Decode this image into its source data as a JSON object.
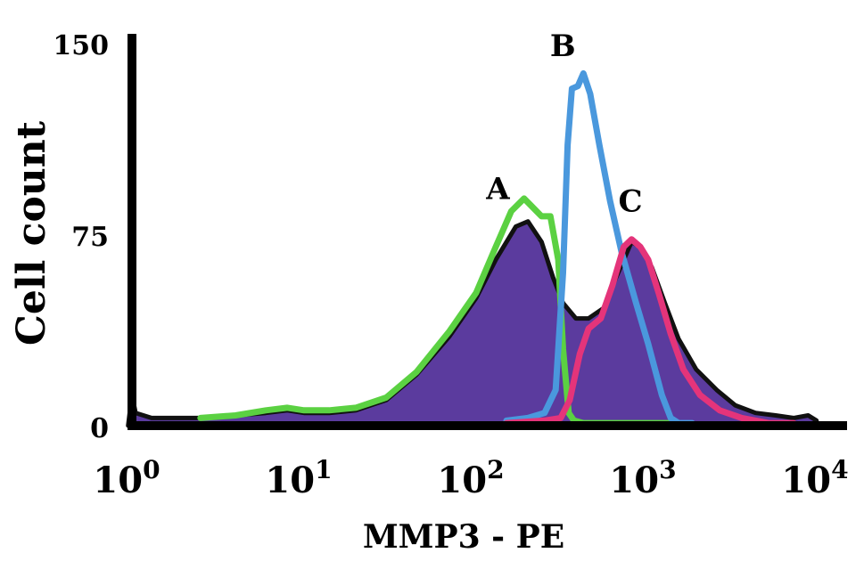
{
  "chart_data": {
    "type": "area",
    "xlabel": "MMP3 - PE",
    "ylabel": "Cell count",
    "x_scale": "log",
    "xlim": [
      1,
      10000
    ],
    "ylim": [
      0,
      150
    ],
    "x_ticks": [
      {
        "value": 1,
        "base": "10",
        "exp": "0"
      },
      {
        "value": 10,
        "base": "10",
        "exp": "1"
      },
      {
        "value": 100,
        "base": "10",
        "exp": "2"
      },
      {
        "value": 1000,
        "base": "10",
        "exp": "3"
      },
      {
        "value": 10000,
        "base": "10",
        "exp": "4"
      }
    ],
    "y_ticks": [
      {
        "value": 0,
        "label": "0"
      },
      {
        "value": 75,
        "label": "75"
      },
      {
        "value": 150,
        "label": "150"
      }
    ],
    "grid": false,
    "series": [
      {
        "id": "total",
        "fill": "#5b3b9e",
        "stroke": "#111111",
        "points": [
          [
            0.95,
            0
          ],
          [
            1.0,
            12
          ],
          [
            1.05,
            5
          ],
          [
            1.3,
            3
          ],
          [
            1.8,
            3
          ],
          [
            2.5,
            3
          ],
          [
            4,
            4
          ],
          [
            6,
            5
          ],
          [
            8,
            6
          ],
          [
            10,
            5
          ],
          [
            14,
            5
          ],
          [
            20,
            6
          ],
          [
            30,
            10
          ],
          [
            45,
            20
          ],
          [
            70,
            35
          ],
          [
            100,
            50
          ],
          [
            130,
            65
          ],
          [
            170,
            78
          ],
          [
            200,
            80
          ],
          [
            240,
            72
          ],
          [
            280,
            58
          ],
          [
            320,
            48
          ],
          [
            380,
            42
          ],
          [
            450,
            42
          ],
          [
            550,
            46
          ],
          [
            650,
            58
          ],
          [
            800,
            72
          ],
          [
            900,
            70
          ],
          [
            1050,
            62
          ],
          [
            1250,
            48
          ],
          [
            1500,
            34
          ],
          [
            1900,
            22
          ],
          [
            2500,
            14
          ],
          [
            3200,
            8
          ],
          [
            4200,
            5
          ],
          [
            5500,
            4
          ],
          [
            7000,
            3
          ],
          [
            8500,
            4
          ],
          [
            9500,
            2
          ],
          [
            9600,
            0
          ]
        ]
      },
      {
        "id": "A",
        "label": "A",
        "stroke": "#5bd142",
        "points": [
          [
            2.5,
            3
          ],
          [
            4,
            4
          ],
          [
            6,
            6
          ],
          [
            8,
            7
          ],
          [
            10,
            6
          ],
          [
            14,
            6
          ],
          [
            20,
            7
          ],
          [
            30,
            11
          ],
          [
            45,
            21
          ],
          [
            70,
            37
          ],
          [
            100,
            52
          ],
          [
            130,
            70
          ],
          [
            160,
            84
          ],
          [
            190,
            89
          ],
          [
            210,
            86
          ],
          [
            240,
            82
          ],
          [
            270,
            82
          ],
          [
            300,
            65
          ],
          [
            320,
            30
          ],
          [
            345,
            5
          ],
          [
            370,
            2
          ],
          [
            420,
            1
          ],
          [
            500,
            1
          ],
          [
            700,
            1
          ],
          [
            1000,
            1
          ],
          [
            1500,
            1
          ]
        ]
      },
      {
        "id": "B",
        "label": "B",
        "stroke": "#4a98dd",
        "points": [
          [
            150,
            2
          ],
          [
            200,
            3
          ],
          [
            250,
            5
          ],
          [
            290,
            14
          ],
          [
            320,
            60
          ],
          [
            340,
            110
          ],
          [
            360,
            132
          ],
          [
            390,
            133
          ],
          [
            420,
            138
          ],
          [
            460,
            130
          ],
          [
            520,
            110
          ],
          [
            600,
            88
          ],
          [
            700,
            68
          ],
          [
            850,
            48
          ],
          [
            1000,
            32
          ],
          [
            1200,
            12
          ],
          [
            1350,
            3
          ],
          [
            1500,
            1
          ],
          [
            1800,
            1
          ]
        ]
      },
      {
        "id": "C",
        "label": "C",
        "stroke": "#e4347a",
        "points": [
          [
            150,
            1
          ],
          [
            250,
            2
          ],
          [
            310,
            3
          ],
          [
            350,
            10
          ],
          [
            400,
            28
          ],
          [
            450,
            38
          ],
          [
            530,
            42
          ],
          [
            620,
            55
          ],
          [
            720,
            70
          ],
          [
            800,
            73
          ],
          [
            900,
            70
          ],
          [
            1000,
            65
          ],
          [
            1150,
            52
          ],
          [
            1350,
            36
          ],
          [
            1600,
            22
          ],
          [
            2000,
            12
          ],
          [
            2600,
            6
          ],
          [
            3500,
            3
          ],
          [
            5000,
            1
          ],
          [
            7000,
            1
          ]
        ]
      }
    ]
  }
}
